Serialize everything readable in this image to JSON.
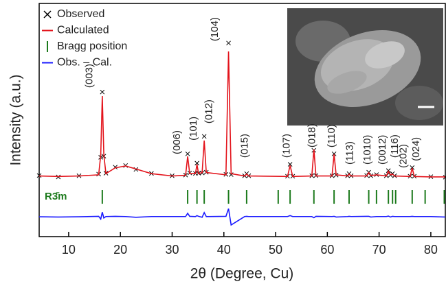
{
  "chart_data": {
    "type": "rietveld",
    "xlabel": "2θ (Degree, Cu)",
    "ylabel": "Intensity (a.u.)",
    "xlim": [
      4.3,
      82.8
    ],
    "ylim": [
      0,
      100
    ],
    "xticks": [
      10,
      20,
      30,
      40,
      50,
      60,
      70,
      80
    ],
    "legend": "upper left",
    "x": [
      4.3,
      8,
      12,
      15.8,
      16.2,
      16.5,
      16.8,
      17.2,
      19,
      21,
      23,
      26,
      30,
      32.6,
      33.0,
      33.4,
      34.5,
      34.8,
      35.1,
      35.8,
      36.2,
      36.6,
      40.4,
      40.9,
      41.4,
      44.0,
      44.4,
      44.8,
      52.3,
      52.8,
      53.3,
      57.0,
      57.4,
      57.8,
      60.9,
      61.3,
      61.7,
      63.9,
      64.2,
      64.6,
      67.6,
      68.0,
      68.4,
      69.5,
      71.4,
      71.8,
      72.2,
      72.6,
      73.0,
      76.0,
      76.4,
      76.8,
      80,
      82.8
    ],
    "series": [
      {
        "name": "Observed",
        "color": "#000000",
        "marker": "x",
        "values": [
          26.2,
          25.6,
          26.1,
          26.8,
          34,
          62,
          34.5,
          27.2,
          29.8,
          30.5,
          28.8,
          27.1,
          26.1,
          26.4,
          35.5,
          27.3,
          27.1,
          31.5,
          27.2,
          27.3,
          43,
          27.6,
          26.7,
          83,
          26.6,
          26.1,
          27,
          26.1,
          25.9,
          31,
          25.9,
          26.1,
          37,
          26.2,
          26.1,
          35.5,
          26.4,
          26.1,
          27,
          26.1,
          26.2,
          27.6,
          26.1,
          26.6,
          26.1,
          28.3,
          26.4,
          27,
          26.1,
          25.9,
          29.6,
          25.9,
          25.7,
          25.5
        ]
      },
      {
        "name": "Calculated",
        "color": "#e3141c",
        "marker": "line",
        "values": [
          26,
          25.8,
          26,
          26.5,
          35,
          60.3,
          35,
          27,
          29.5,
          30.3,
          29,
          27,
          26,
          26.3,
          34.4,
          27,
          27,
          31,
          27,
          27.5,
          41.2,
          27.5,
          26.5,
          79.4,
          27,
          26,
          26.8,
          26,
          25.8,
          30.5,
          25.8,
          26,
          37.4,
          26,
          26,
          35.3,
          26.5,
          26,
          26.8,
          26,
          26,
          27.4,
          26.2,
          26.5,
          26,
          28,
          26.5,
          26.8,
          26,
          25.8,
          29.4,
          25.8,
          25.6,
          25.6
        ]
      },
      {
        "name": "Bragg position",
        "color": "#1c7a1c",
        "marker": "tick",
        "label": "R3̄m",
        "positions": [
          16.5,
          33.0,
          34.8,
          36.2,
          40.9,
          44.4,
          50.5,
          52.8,
          57.4,
          61.3,
          64.2,
          68.0,
          69.5,
          71.8,
          72.6,
          73.2,
          76.4,
          78.9,
          82.6
        ],
        "tick_range": [
          14.1,
          20
        ]
      },
      {
        "name": "Obs. – Cal.",
        "color": "#1a1aff",
        "marker": "line",
        "values": [
          8.5,
          8.4,
          8.5,
          8.7,
          7.5,
          10.5,
          8,
          8.6,
          8.7,
          8.6,
          8.3,
          8.6,
          8.6,
          8.6,
          10,
          8.7,
          8.6,
          9,
          8.7,
          8.3,
          10.3,
          8.6,
          8.7,
          12,
          5,
          8.6,
          8.7,
          8.6,
          8.6,
          9,
          8.6,
          8.6,
          8.1,
          8.7,
          8.6,
          8.7,
          8.4,
          8.6,
          8.7,
          8.6,
          8.7,
          8.7,
          8.4,
          8.6,
          8.6,
          8.8,
          8.4,
          8.7,
          8.6,
          8.6,
          8.7,
          8.6,
          8.6,
          8.4
        ]
      }
    ],
    "annotations": [
      {
        "text": "(003)",
        "x": 14.1,
        "y": 63.8
      },
      {
        "text": "(006)",
        "x": 31.0,
        "y": 35.3
      },
      {
        "text": "(101)",
        "x": 34.2,
        "y": 41.2
      },
      {
        "text": "(012)",
        "x": 37.2,
        "y": 48.5
      },
      {
        "text": "(104)",
        "x": 38.3,
        "y": 83.8
      },
      {
        "text": "(015)",
        "x": 44.1,
        "y": 33.8
      },
      {
        "text": "(107)",
        "x": 52.2,
        "y": 33.8
      },
      {
        "text": "(018)",
        "x": 57.1,
        "y": 38.2
      },
      {
        "text": "(110)",
        "x": 60.9,
        "y": 38.2
      },
      {
        "text": "(113)",
        "x": 64.4,
        "y": 30.9
      },
      {
        "text": "(1010)",
        "x": 67.8,
        "y": 30.9
      },
      {
        "text": "(0012)",
        "x": 70.7,
        "y": 30.9
      },
      {
        "text": "(116)",
        "x": 73.1,
        "y": 33.8
      },
      {
        "text": "(202)",
        "x": 74.8,
        "y": 29.4
      },
      {
        "text": "(024)",
        "x": 77.2,
        "y": 32.4
      }
    ]
  }
}
